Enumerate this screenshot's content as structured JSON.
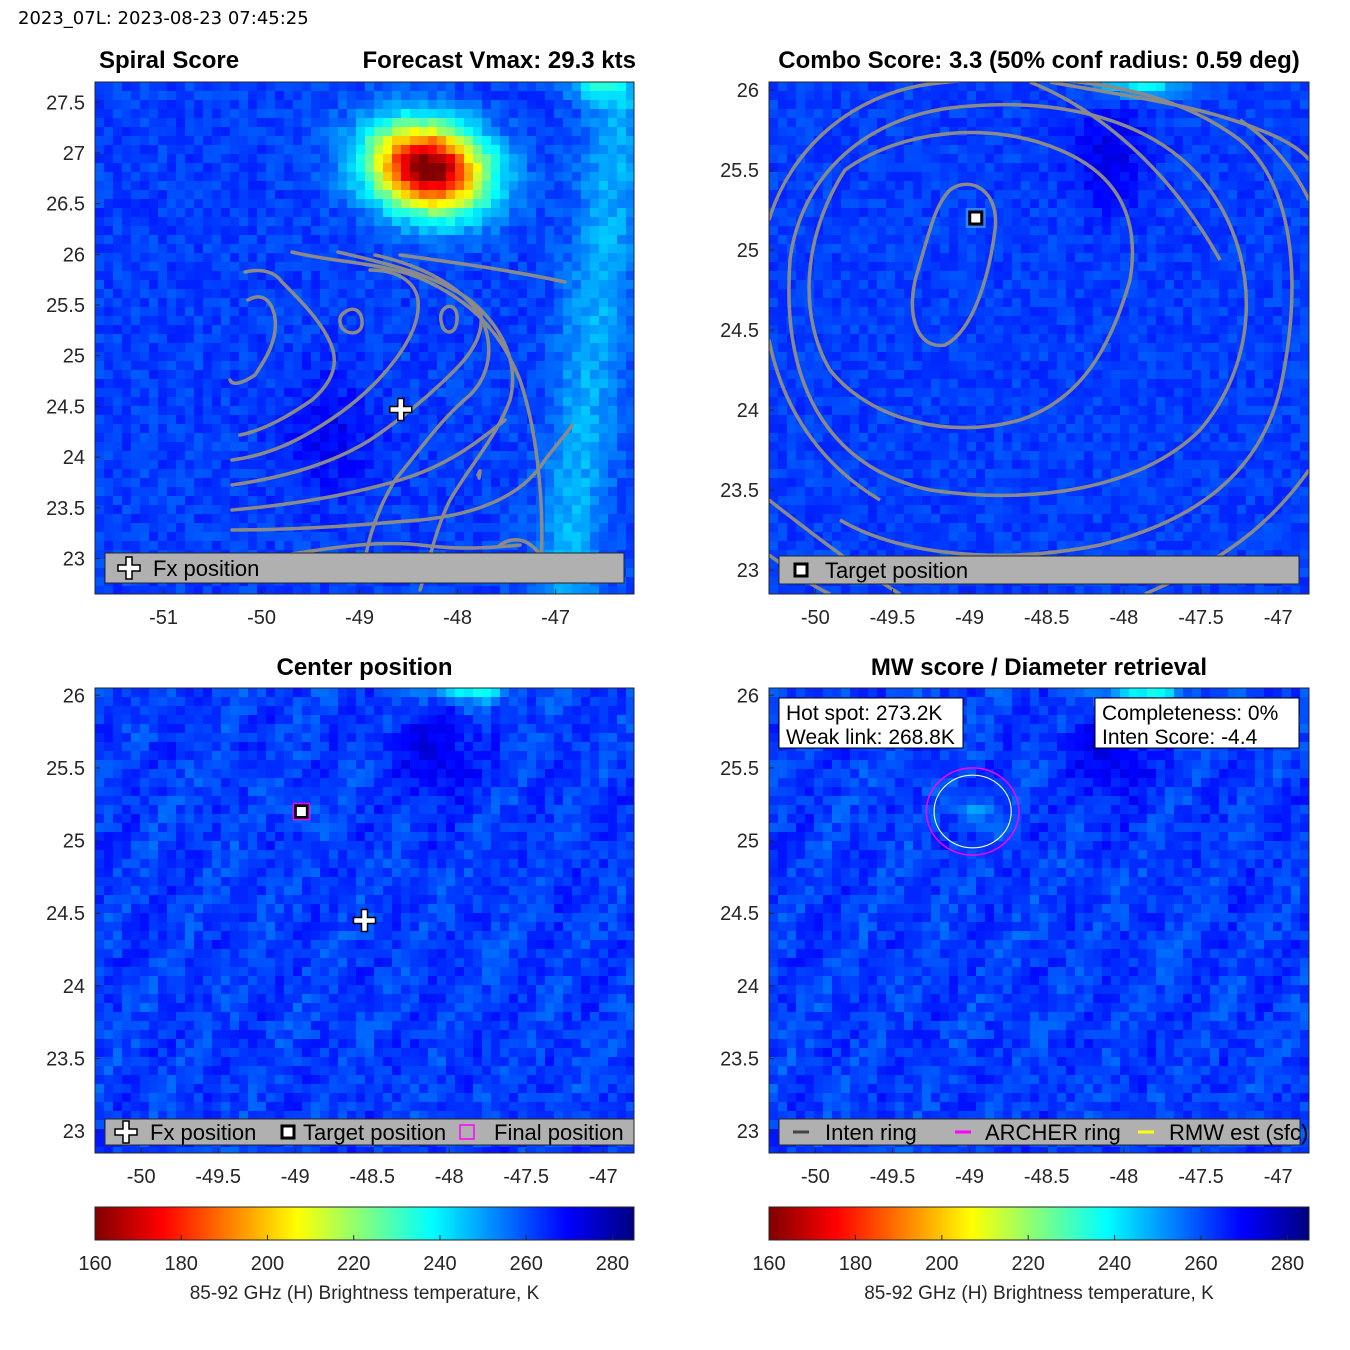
{
  "header": {
    "timestamp": "2023_07L: 2023-08-23 07:45:25"
  },
  "colors": {
    "legend_bg": "#b0b0b0",
    "contour": "#8a8a8a",
    "archer": "#ff00ff",
    "inten": "#444444",
    "rmw": "#ffff00",
    "ocean": "#1f4fe0"
  },
  "chart_data": [
    {
      "type": "heatmap",
      "name": "spiral",
      "title_left": "Spiral Score",
      "title_right": "Forecast Vmax: 29.3 kts",
      "xlim": [
        -51.7,
        -46.2
      ],
      "ylim": [
        22.65,
        27.7
      ],
      "xticks": [
        -51,
        -50,
        -49,
        -48,
        -47
      ],
      "yticks": [
        23,
        23.5,
        24,
        24.5,
        25,
        25.5,
        26,
        26.5,
        27,
        27.5
      ],
      "hot_spot": {
        "lon": -48.3,
        "lat": 26.85,
        "min_tb": 165
      },
      "fx_position": {
        "lon": -48.58,
        "lat": 24.47
      },
      "legend": [
        "Fx position"
      ]
    },
    {
      "type": "heatmap",
      "name": "combo",
      "title": "Combo Score: 3.3  (50% conf radius: 0.59 deg)",
      "xlim": [
        -50.3,
        -46.8
      ],
      "ylim": [
        22.85,
        26.05
      ],
      "xticks": [
        -50,
        -49.5,
        -49,
        -48.5,
        -48,
        -47.5,
        -47
      ],
      "yticks": [
        23,
        23.5,
        24,
        24.5,
        25,
        25.5,
        26
      ],
      "target_position": {
        "lon": -48.96,
        "lat": 25.2
      },
      "legend": [
        "Target position"
      ]
    },
    {
      "type": "heatmap",
      "name": "center",
      "title": "Center position",
      "xlim": [
        -50.3,
        -46.8
      ],
      "ylim": [
        22.85,
        26.05
      ],
      "xticks": [
        -50,
        -49.5,
        -49,
        -48.5,
        -48,
        -47.5,
        -47
      ],
      "yticks": [
        23,
        23.5,
        24,
        24.5,
        25,
        25.5,
        26
      ],
      "fx_position": {
        "lon": -48.55,
        "lat": 24.45
      },
      "target_position": {
        "lon": -48.96,
        "lat": 25.2
      },
      "final_position": {
        "lon": -48.96,
        "lat": 25.2
      },
      "legend": [
        "Fx position",
        "Target position",
        "Final position"
      ]
    },
    {
      "type": "heatmap",
      "name": "mw",
      "title": "MW score / Diameter retrieval",
      "xlim": [
        -50.3,
        -46.8
      ],
      "ylim": [
        22.85,
        26.05
      ],
      "xticks": [
        -50,
        -49.5,
        -49,
        -48.5,
        -48,
        -47.5,
        -47
      ],
      "yticks": [
        23,
        23.5,
        24,
        24.5,
        25,
        25.5,
        26
      ],
      "hot_spot_label": "Hot spot: 273.2K",
      "weak_link_label": "Weak link: 268.8K",
      "completeness_label": "Completeness: 0%",
      "inten_score_label": "Inten Score: -4.4",
      "ring_center": {
        "lon": -48.98,
        "lat": 25.2
      },
      "archer_ring_radius_deg": 0.3,
      "rmw_ring_radius_deg": 0.25,
      "legend": [
        "Inten ring",
        "ARCHER ring",
        "RMW est (sfc)"
      ]
    }
  ],
  "colorbar": {
    "range": [
      160,
      285
    ],
    "ticks": [
      160,
      180,
      200,
      220,
      240,
      260,
      280
    ],
    "label": "85-92 GHz (H) Brightness temperature, K"
  }
}
